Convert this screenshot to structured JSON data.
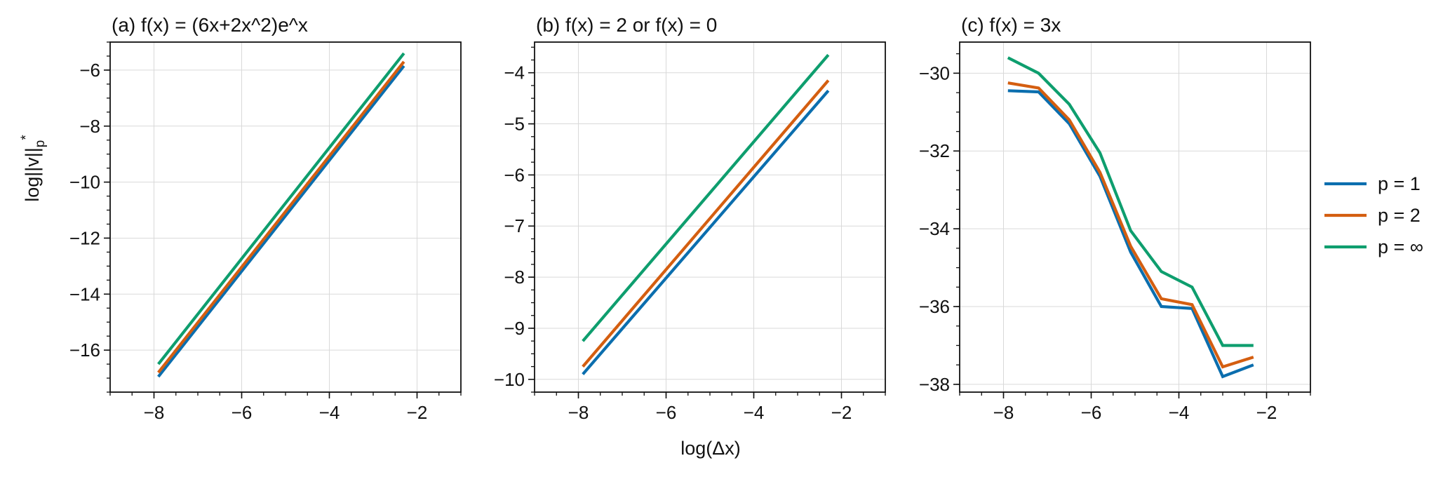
{
  "figure": {
    "xlabel": "log(Δx)",
    "ylabel": "log||v||",
    "ylabel_sub": "p",
    "ylabel_sup": "*"
  },
  "legend": {
    "placement": "right",
    "entries": [
      {
        "label": "p = 1",
        "color": "#0b6eae"
      },
      {
        "label": "p = 2",
        "color": "#d45e10"
      },
      {
        "label": "p = ∞",
        "color": "#0e9e6e"
      }
    ]
  },
  "colors": {
    "p1": "#0b6eae",
    "p2": "#d45e10",
    "pinf": "#0e9e6e",
    "grid": "#d9d9d9",
    "axis": "#111111"
  },
  "chart_data": [
    {
      "type": "line",
      "title": "(a) f(x) = (6x+2x^2)e^x",
      "xlim": [
        -9,
        -1
      ],
      "ylim": [
        -17.5,
        -5
      ],
      "xticks": [
        -8,
        -6,
        -4,
        -2
      ],
      "yticks": [
        -16,
        -14,
        -12,
        -10,
        -8,
        -6
      ],
      "grid": true,
      "series": [
        {
          "name": "p = 1",
          "x": [
            -7.9,
            -2.3
          ],
          "y": [
            -16.95,
            -5.85
          ]
        },
        {
          "name": "p = 2",
          "x": [
            -7.9,
            -2.3
          ],
          "y": [
            -16.8,
            -5.7
          ]
        },
        {
          "name": "p = ∞",
          "x": [
            -7.9,
            -2.3
          ],
          "y": [
            -16.5,
            -5.4
          ]
        }
      ]
    },
    {
      "type": "line",
      "title": "(b) f(x) = 2 or f(x) = 0",
      "xlim": [
        -9,
        -1
      ],
      "ylim": [
        -10.25,
        -3.4
      ],
      "xticks": [
        -8,
        -6,
        -4,
        -2
      ],
      "yticks": [
        -10,
        -9,
        -8,
        -7,
        -6,
        -5,
        -4
      ],
      "grid": true,
      "series": [
        {
          "name": "p = 1",
          "x": [
            -7.9,
            -2.3
          ],
          "y": [
            -9.9,
            -4.35
          ]
        },
        {
          "name": "p = 2",
          "x": [
            -7.9,
            -2.3
          ],
          "y": [
            -9.75,
            -4.15
          ]
        },
        {
          "name": "p = ∞",
          "x": [
            -7.9,
            -2.3
          ],
          "y": [
            -9.25,
            -3.65
          ]
        }
      ]
    },
    {
      "type": "line",
      "title": "(c) f(x) = 3x",
      "xlim": [
        -9,
        -1
      ],
      "ylim": [
        -38.2,
        -29.2
      ],
      "xticks": [
        -8,
        -6,
        -4,
        -2
      ],
      "yticks": [
        -38,
        -36,
        -34,
        -32,
        -30
      ],
      "grid": true,
      "series": [
        {
          "name": "p = 1",
          "x": [
            -7.9,
            -7.2,
            -6.5,
            -5.8,
            -5.1,
            -4.4,
            -3.7,
            -3.0,
            -2.3
          ],
          "y": [
            -30.45,
            -30.48,
            -31.3,
            -32.65,
            -34.6,
            -36.0,
            -36.05,
            -37.8,
            -37.5
          ]
        },
        {
          "name": "p = 2",
          "x": [
            -7.9,
            -7.2,
            -6.5,
            -5.8,
            -5.1,
            -4.4,
            -3.7,
            -3.0,
            -2.3
          ],
          "y": [
            -30.25,
            -30.38,
            -31.2,
            -32.55,
            -34.45,
            -35.8,
            -35.95,
            -37.55,
            -37.3
          ]
        },
        {
          "name": "p = ∞",
          "x": [
            -7.9,
            -7.2,
            -6.5,
            -5.8,
            -5.1,
            -4.4,
            -3.7,
            -3.0,
            -2.3
          ],
          "y": [
            -29.6,
            -30.0,
            -30.8,
            -32.05,
            -34.05,
            -35.1,
            -35.5,
            -37.0,
            -37.0
          ]
        }
      ]
    }
  ]
}
